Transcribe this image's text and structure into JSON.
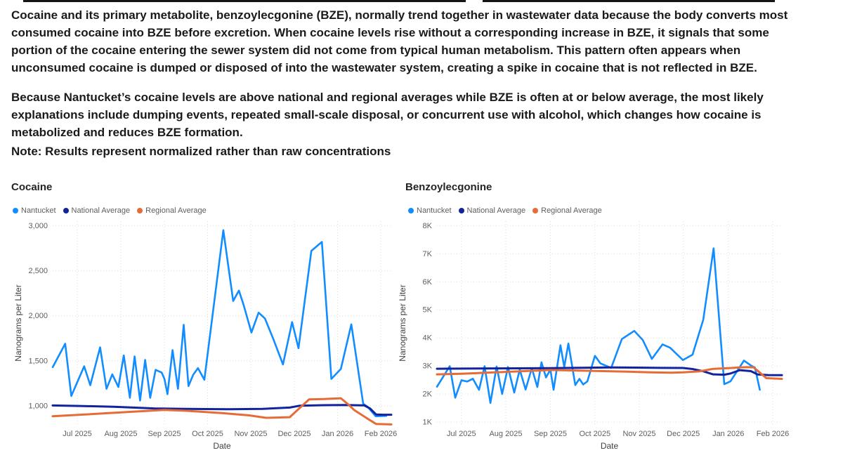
{
  "intro": {
    "p1": "Cocaine and its primary metabolite, benzoylecgonine (BZE), normally trend together in wastewater data because the body converts most consumed cocaine into BZE before excretion. When cocaine levels rise without a corresponding increase in BZE, it signals that some portion of the cocaine entering the sewer system did not come from typical human metabolism. This pattern often appears when unconsumed cocaine is dumped or disposed of into the wastewater system, creating a spike in cocaine that is not reflected in BZE.",
    "p2": "Because Nantucket’s cocaine levels are above national and regional averages while BZE is often at or below average, the most likely explanations include dumping events, repeated small-scale disposal, or concurrent use with alcohol, which changes how cocaine is metabolized and reduces BZE formation.",
    "note": "Note: Results represent normalized rather than raw concentrations"
  },
  "colors": {
    "nantucket": "#118DFF",
    "national_average": "#12239E",
    "regional_average": "#E66C37",
    "grid": "#DBDBDB",
    "tick_text": "#605E5C"
  },
  "chart_data": [
    {
      "type": "line",
      "title": "Cocaine",
      "xlabel": "Date",
      "ylabel": "Nanograms per Liter",
      "ylim": [
        790,
        3050
      ],
      "grid": true,
      "legend_position": "top-left",
      "yticks": [
        {
          "v": 3000,
          "label": "3,000"
        },
        {
          "v": 2500,
          "label": "2,500"
        },
        {
          "v": 2000,
          "label": "2,000"
        },
        {
          "v": 1500,
          "label": "1,500"
        },
        {
          "v": 1000,
          "label": "1,000"
        }
      ],
      "xticks": [
        {
          "f": 0.0726,
          "label": "Jul 2025"
        },
        {
          "f": 0.2012,
          "label": "Aug 2025"
        },
        {
          "f": 0.3299,
          "label": "Sep 2025"
        },
        {
          "f": 0.4575,
          "label": "Oct 2025"
        },
        {
          "f": 0.5851,
          "label": "Nov 2025"
        },
        {
          "f": 0.7137,
          "label": "Dec 2025"
        },
        {
          "f": 0.8413,
          "label": "Jan 2026"
        },
        {
          "f": 0.9689,
          "label": "Feb 2026"
        }
      ],
      "series": [
        {
          "name": "Nantucket",
          "color": "#118DFF",
          "points": [
            [
              0.0,
              1430
            ],
            [
              0.037,
              1690
            ],
            [
              0.055,
              1110
            ],
            [
              0.093,
              1440
            ],
            [
              0.111,
              1230
            ],
            [
              0.14,
              1650
            ],
            [
              0.159,
              1190
            ],
            [
              0.176,
              1350
            ],
            [
              0.194,
              1210
            ],
            [
              0.21,
              1560
            ],
            [
              0.228,
              1090
            ],
            [
              0.242,
              1550
            ],
            [
              0.258,
              1060
            ],
            [
              0.273,
              1510
            ],
            [
              0.288,
              1090
            ],
            [
              0.304,
              1400
            ],
            [
              0.322,
              1370
            ],
            [
              0.33,
              1300
            ],
            [
              0.339,
              1130
            ],
            [
              0.354,
              1620
            ],
            [
              0.37,
              1190
            ],
            [
              0.387,
              1900
            ],
            [
              0.401,
              1220
            ],
            [
              0.415,
              1345
            ],
            [
              0.429,
              1420
            ],
            [
              0.448,
              1290
            ],
            [
              0.504,
              2950
            ],
            [
              0.533,
              2165
            ],
            [
              0.55,
              2280
            ],
            [
              0.564,
              2120
            ],
            [
              0.587,
              1815
            ],
            [
              0.608,
              2035
            ],
            [
              0.627,
              1970
            ],
            [
              0.653,
              1730
            ],
            [
              0.68,
              1460
            ],
            [
              0.707,
              1930
            ],
            [
              0.726,
              1640
            ],
            [
              0.764,
              2720
            ],
            [
              0.795,
              2820
            ],
            [
              0.823,
              1300
            ],
            [
              0.851,
              1410
            ],
            [
              0.882,
              1905
            ],
            [
              0.917,
              1025
            ],
            [
              0.93,
              990
            ],
            [
              0.954,
              885
            ],
            [
              0.985,
              890
            ]
          ]
        },
        {
          "name": "National Average",
          "color": "#12239E",
          "points": [
            [
              0.0,
              1005
            ],
            [
              0.08,
              1000
            ],
            [
              0.18,
              990
            ],
            [
              0.3,
              972
            ],
            [
              0.42,
              966
            ],
            [
              0.52,
              963
            ],
            [
              0.62,
              968
            ],
            [
              0.7,
              982
            ],
            [
              0.73,
              1003
            ],
            [
              0.8,
              1008
            ],
            [
              0.86,
              1010
            ],
            [
              0.92,
              1006
            ],
            [
              0.937,
              972
            ],
            [
              0.955,
              905
            ],
            [
              0.975,
              902
            ],
            [
              1.0,
              902
            ]
          ]
        },
        {
          "name": "Regional Average",
          "color": "#E66C37",
          "points": [
            [
              0.0,
              885
            ],
            [
              0.1,
              906
            ],
            [
              0.22,
              932
            ],
            [
              0.33,
              956
            ],
            [
              0.4,
              945
            ],
            [
              0.5,
              920
            ],
            [
              0.58,
              895
            ],
            [
              0.63,
              868
            ],
            [
              0.7,
              875
            ],
            [
              0.716,
              930
            ],
            [
              0.757,
              1072
            ],
            [
              0.8,
              1076
            ],
            [
              0.851,
              1085
            ],
            [
              0.875,
              1010
            ],
            [
              0.89,
              955
            ],
            [
              0.93,
              858
            ],
            [
              0.955,
              800
            ],
            [
              1.0,
              795
            ]
          ]
        }
      ]
    },
    {
      "type": "line",
      "title": "Benzoylecgonine",
      "xlabel": "Date",
      "ylabel": "Nanograms per Liter",
      "ylim": [
        900,
        8160
      ],
      "grid": true,
      "legend_position": "top-left",
      "yticks": [
        {
          "v": 8000,
          "label": "8K"
        },
        {
          "v": 7000,
          "label": "7K"
        },
        {
          "v": 6000,
          "label": "6K"
        },
        {
          "v": 5000,
          "label": "5K"
        },
        {
          "v": 4000,
          "label": "4K"
        },
        {
          "v": 3000,
          "label": "3K"
        },
        {
          "v": 2000,
          "label": "2K"
        },
        {
          "v": 1000,
          "label": "1K"
        }
      ],
      "xticks": [
        {
          "f": 0.0709,
          "label": "Jul 2025"
        },
        {
          "f": 0.1996,
          "label": "Aug 2025"
        },
        {
          "f": 0.3289,
          "label": "Sep 2025"
        },
        {
          "f": 0.4578,
          "label": "Oct 2025"
        },
        {
          "f": 0.5866,
          "label": "Nov 2025"
        },
        {
          "f": 0.7143,
          "label": "Dec 2025"
        },
        {
          "f": 0.8446,
          "label": "Jan 2026"
        },
        {
          "f": 0.9735,
          "label": "Feb 2026"
        }
      ],
      "series": [
        {
          "name": "Nantucket",
          "color": "#118DFF",
          "points": [
            [
              0.0,
              2260
            ],
            [
              0.037,
              2990
            ],
            [
              0.053,
              1870
            ],
            [
              0.071,
              2490
            ],
            [
              0.088,
              2445
            ],
            [
              0.104,
              2545
            ],
            [
              0.122,
              2150
            ],
            [
              0.138,
              2990
            ],
            [
              0.155,
              1680
            ],
            [
              0.173,
              2980
            ],
            [
              0.189,
              2000
            ],
            [
              0.206,
              2960
            ],
            [
              0.224,
              2050
            ],
            [
              0.24,
              2870
            ],
            [
              0.257,
              2160
            ],
            [
              0.275,
              2920
            ],
            [
              0.291,
              2250
            ],
            [
              0.303,
              3130
            ],
            [
              0.316,
              2590
            ],
            [
              0.329,
              2870
            ],
            [
              0.338,
              2150
            ],
            [
              0.358,
              3740
            ],
            [
              0.369,
              2960
            ],
            [
              0.381,
              3800
            ],
            [
              0.401,
              2320
            ],
            [
              0.413,
              2540
            ],
            [
              0.424,
              2340
            ],
            [
              0.436,
              2450
            ],
            [
              0.458,
              3360
            ],
            [
              0.474,
              3090
            ],
            [
              0.505,
              2930
            ],
            [
              0.536,
              3960
            ],
            [
              0.572,
              4250
            ],
            [
              0.597,
              3920
            ],
            [
              0.623,
              3250
            ],
            [
              0.654,
              3770
            ],
            [
              0.676,
              3650
            ],
            [
              0.713,
              3210
            ],
            [
              0.741,
              3400
            ],
            [
              0.772,
              4650
            ],
            [
              0.802,
              7190
            ],
            [
              0.833,
              2350
            ],
            [
              0.851,
              2450
            ],
            [
              0.89,
              3190
            ],
            [
              0.911,
              3010
            ],
            [
              0.922,
              2940
            ],
            [
              0.936,
              2150
            ]
          ]
        },
        {
          "name": "National Average",
          "color": "#12239E",
          "points": [
            [
              0.0,
              2900
            ],
            [
              0.12,
              2908
            ],
            [
              0.24,
              2915
            ],
            [
              0.329,
              2922
            ],
            [
              0.42,
              2935
            ],
            [
              0.5,
              2945
            ],
            [
              0.58,
              2940
            ],
            [
              0.65,
              2930
            ],
            [
              0.713,
              2928
            ],
            [
              0.741,
              2890
            ],
            [
              0.772,
              2810
            ],
            [
              0.8,
              2700
            ],
            [
              0.833,
              2688
            ],
            [
              0.851,
              2730
            ],
            [
              0.878,
              2850
            ],
            [
              0.91,
              2815
            ],
            [
              0.93,
              2695
            ],
            [
              0.96,
              2675
            ],
            [
              1.0,
              2670
            ]
          ]
        },
        {
          "name": "Regional Average",
          "color": "#E66C37",
          "points": [
            [
              0.0,
              2700
            ],
            [
              0.071,
              2722
            ],
            [
              0.15,
              2762
            ],
            [
              0.24,
              2808
            ],
            [
              0.329,
              2855
            ],
            [
              0.4,
              2838
            ],
            [
              0.458,
              2820
            ],
            [
              0.54,
              2800
            ],
            [
              0.62,
              2772
            ],
            [
              0.68,
              2760
            ],
            [
              0.713,
              2772
            ],
            [
              0.76,
              2805
            ],
            [
              0.8,
              2895
            ],
            [
              0.85,
              2925
            ],
            [
              0.878,
              2948
            ],
            [
              0.9,
              2955
            ],
            [
              0.918,
              2950
            ],
            [
              0.935,
              2772
            ],
            [
              0.955,
              2565
            ],
            [
              1.0,
              2540
            ]
          ]
        }
      ]
    }
  ]
}
